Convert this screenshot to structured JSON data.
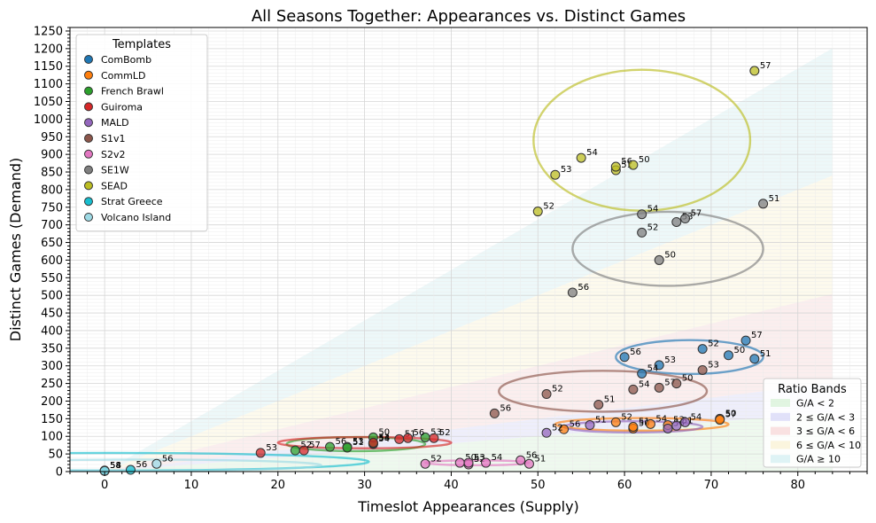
{
  "chart_data": {
    "type": "scatter",
    "title": "All Seasons Together: Appearances vs. Distinct Games",
    "xlabel": "Timeslot Appearances (Supply)",
    "ylabel": "Distinct Games (Demand)",
    "xlim": [
      -4,
      88
    ],
    "ylim": [
      0,
      1260
    ],
    "xticks": [
      0,
      10,
      20,
      30,
      40,
      50,
      60,
      70,
      80
    ],
    "yticks": [
      0,
      50,
      100,
      150,
      200,
      250,
      300,
      350,
      400,
      450,
      500,
      550,
      600,
      650,
      700,
      750,
      800,
      850,
      900,
      950,
      1000,
      1050,
      1100,
      1150,
      1200,
      1250
    ],
    "grid": true,
    "legend": {
      "title": "Templates",
      "placement": "top-left"
    },
    "bands_legend": {
      "title": "Ratio Bands",
      "placement": "bottom-right",
      "entries": [
        {
          "label": "G/A < 2",
          "color": "#d9f2d9"
        },
        {
          "label": "2 ≤ G/A < 3",
          "color": "#d9d9f7"
        },
        {
          "label": "3 ≤ G/A < 6",
          "color": "#f7dada"
        },
        {
          "label": "6 ≤ G/A < 10",
          "color": "#faf3d6"
        },
        {
          "label": "G/A ≥ 10",
          "color": "#d6f0f2"
        }
      ],
      "bands": [
        {
          "min": 0,
          "max": 2
        },
        {
          "min": 2,
          "max": 3
        },
        {
          "min": 3,
          "max": 6
        },
        {
          "min": 6,
          "max": 10
        },
        {
          "min": 10,
          "max": 14.3
        }
      ],
      "x_extent": [
        0,
        84
      ]
    },
    "series": [
      {
        "name": "ComBomb",
        "color": "#1f77b4",
        "points": [
          {
            "x": 60,
            "y": 325,
            "label": "56"
          },
          {
            "x": 64,
            "y": 302,
            "label": "53"
          },
          {
            "x": 62,
            "y": 278,
            "label": "54"
          },
          {
            "x": 69,
            "y": 348,
            "label": "52"
          },
          {
            "x": 72,
            "y": 330,
            "label": "50"
          },
          {
            "x": 74,
            "y": 372,
            "label": "57"
          },
          {
            "x": 75,
            "y": 320,
            "label": "51"
          }
        ],
        "ellipse": {
          "cx": 67.5,
          "cy": 325,
          "rx": 8.5,
          "ry": 48
        }
      },
      {
        "name": "CommLD",
        "color": "#ff7f0e",
        "points": [
          {
            "x": 53,
            "y": 120,
            "label": "56"
          },
          {
            "x": 59,
            "y": 140,
            "label": "52"
          },
          {
            "x": 61,
            "y": 122,
            "label": "50"
          },
          {
            "x": 61,
            "y": 127,
            "label": "51"
          },
          {
            "x": 63,
            "y": 135,
            "label": "54"
          },
          {
            "x": 65,
            "y": 132,
            "label": "53"
          },
          {
            "x": 71,
            "y": 150,
            "label": "50"
          },
          {
            "x": 71,
            "y": 147,
            "label": "57"
          }
        ],
        "ellipse": {
          "cx": 62,
          "cy": 134,
          "rx": 10,
          "ry": 18
        }
      },
      {
        "name": "French Brawl",
        "color": "#2ca02c",
        "points": [
          {
            "x": 22,
            "y": 60,
            "label": "52"
          },
          {
            "x": 26,
            "y": 70,
            "label": "56"
          },
          {
            "x": 28,
            "y": 70,
            "label": "53"
          },
          {
            "x": 28,
            "y": 68,
            "label": "51"
          },
          {
            "x": 31,
            "y": 78,
            "label": "54"
          },
          {
            "x": 31,
            "y": 80,
            "label": "53"
          },
          {
            "x": 31,
            "y": 97,
            "label": "50"
          },
          {
            "x": 37,
            "y": 97,
            "label": "53"
          }
        ],
        "ellipse": {
          "cx": 29,
          "cy": 78,
          "rx": 8,
          "ry": 20
        }
      },
      {
        "name": "Guiroma",
        "color": "#d62728",
        "points": [
          {
            "x": 18,
            "y": 53,
            "label": "53"
          },
          {
            "x": 23,
            "y": 60,
            "label": "57"
          },
          {
            "x": 31,
            "y": 82,
            "label": "54"
          },
          {
            "x": 34,
            "y": 92,
            "label": "51"
          },
          {
            "x": 35,
            "y": 95,
            "label": "56"
          },
          {
            "x": 38,
            "y": 95,
            "label": "52"
          }
        ],
        "ellipse": {
          "cx": 30,
          "cy": 82,
          "rx": 10,
          "ry": 16
        }
      },
      {
        "name": "MALD",
        "color": "#9467bd",
        "points": [
          {
            "x": 51,
            "y": 110,
            "label": "52"
          },
          {
            "x": 56,
            "y": 132,
            "label": "51"
          },
          {
            "x": 65,
            "y": 122,
            "label": "56"
          },
          {
            "x": 66,
            "y": 130,
            "label": "51"
          },
          {
            "x": 67,
            "y": 140,
            "label": "54"
          }
        ],
        "ellipse": {
          "cx": 61,
          "cy": 127,
          "rx": 8,
          "ry": 16
        }
      },
      {
        "name": "S1v1",
        "color": "#8c564b",
        "points": [
          {
            "x": 45,
            "y": 165,
            "label": "56"
          },
          {
            "x": 51,
            "y": 220,
            "label": "52"
          },
          {
            "x": 57,
            "y": 190,
            "label": "51"
          },
          {
            "x": 61,
            "y": 233,
            "label": "54"
          },
          {
            "x": 64,
            "y": 238,
            "label": "57"
          },
          {
            "x": 66,
            "y": 250,
            "label": "50"
          },
          {
            "x": 69,
            "y": 288,
            "label": "53"
          }
        ],
        "ellipse": {
          "cx": 57.5,
          "cy": 228,
          "rx": 12,
          "ry": 58
        }
      },
      {
        "name": "S2v2",
        "color": "#e377c2",
        "points": [
          {
            "x": 37,
            "y": 22,
            "label": "52"
          },
          {
            "x": 41,
            "y": 25,
            "label": "50"
          },
          {
            "x": 42,
            "y": 20,
            "label": "52"
          },
          {
            "x": 42,
            "y": 25,
            "label": "53"
          },
          {
            "x": 44,
            "y": 25,
            "label": "54"
          },
          {
            "x": 48,
            "y": 32,
            "label": "56"
          },
          {
            "x": 49,
            "y": 22,
            "label": "51"
          }
        ],
        "ellipse": {
          "cx": 43,
          "cy": 25,
          "rx": 6,
          "ry": 7
        }
      },
      {
        "name": "SE1W",
        "color": "#7f7f7f",
        "points": [
          {
            "x": 54,
            "y": 508,
            "label": "56"
          },
          {
            "x": 62,
            "y": 678,
            "label": "52"
          },
          {
            "x": 62,
            "y": 730,
            "label": "54"
          },
          {
            "x": 64,
            "y": 600,
            "label": "50"
          },
          {
            "x": 66,
            "y": 708,
            "label": "53"
          },
          {
            "x": 67,
            "y": 718,
            "label": "57"
          },
          {
            "x": 76,
            "y": 760,
            "label": "51"
          }
        ],
        "ellipse": {
          "cx": 65,
          "cy": 632,
          "rx": 11,
          "ry": 105
        }
      },
      {
        "name": "SEAD",
        "color": "#bcbd22",
        "points": [
          {
            "x": 50,
            "y": 738,
            "label": "52"
          },
          {
            "x": 52,
            "y": 842,
            "label": "53"
          },
          {
            "x": 55,
            "y": 890,
            "label": "54"
          },
          {
            "x": 59,
            "y": 855,
            "label": "51"
          },
          {
            "x": 59,
            "y": 865,
            "label": "56"
          },
          {
            "x": 61,
            "y": 870,
            "label": "50"
          },
          {
            "x": 75,
            "y": 1137,
            "label": "57"
          }
        ],
        "ellipse": {
          "cx": 62,
          "cy": 940,
          "rx": 12.5,
          "ry": 200
        }
      },
      {
        "name": "Strat Greece",
        "color": "#17becf",
        "points": [
          {
            "x": 0,
            "y": 2,
            "label": "58"
          },
          {
            "x": 0,
            "y": 3,
            "label": "54"
          },
          {
            "x": 3,
            "y": 5,
            "label": "56"
          }
        ],
        "ellipse": {
          "cx": 0.5,
          "cy": 28,
          "rx": 30,
          "ry": 25
        }
      },
      {
        "name": "Volcano Island",
        "color": "#9edae5",
        "points": [
          {
            "x": 0,
            "y": 2,
            "label": "58"
          },
          {
            "x": 6,
            "y": 22,
            "label": "56"
          }
        ],
        "ellipse": {
          "cx": 4,
          "cy": 18,
          "rx": 21,
          "ry": 16
        }
      }
    ]
  }
}
